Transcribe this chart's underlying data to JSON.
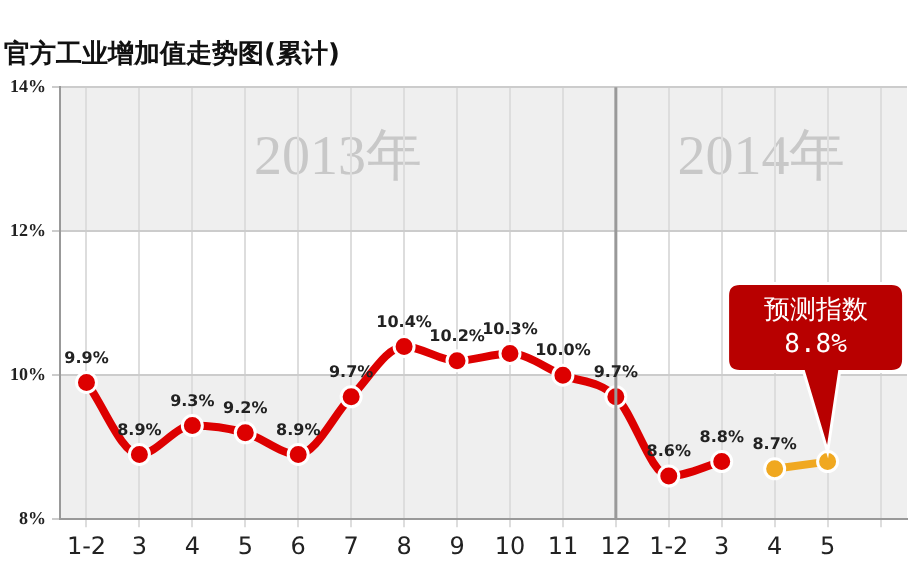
{
  "chart_data": {
    "type": "line",
    "title": "官方工业增加值走势图(累计)",
    "categories": [
      "1-2",
      "3",
      "4",
      "5",
      "6",
      "7",
      "8",
      "9",
      "10",
      "11",
      "12",
      "1-2",
      "3",
      "4",
      "5",
      null
    ],
    "series": [
      {
        "color": "#dd0000",
        "values": [
          9.9,
          8.9,
          9.3,
          9.2,
          8.9,
          9.7,
          10.4,
          10.2,
          10.3,
          10.0,
          9.7,
          8.6,
          8.8,
          null,
          null,
          null
        ],
        "value_labels": [
          "9.9%",
          "8.9%",
          "9.3%",
          "9.2%",
          "8.9%",
          "9.7%",
          "10.4%",
          "10.2%",
          "10.3%",
          "10.0%",
          "9.7%",
          "8.6%",
          "8.8%",
          null,
          null,
          null
        ]
      },
      {
        "color": "#f0a820",
        "values": [
          null,
          null,
          null,
          null,
          null,
          null,
          null,
          null,
          null,
          null,
          null,
          null,
          null,
          8.7,
          8.8,
          null
        ],
        "value_labels": [
          null,
          null,
          null,
          null,
          null,
          null,
          null,
          null,
          null,
          null,
          null,
          null,
          null,
          "8.7%",
          null,
          null
        ]
      }
    ],
    "ylim": [
      8,
      14
    ],
    "yticks": [
      {
        "value": 8,
        "label": "8%"
      },
      {
        "value": 10,
        "label": "10%"
      },
      {
        "value": 12,
        "label": "12%"
      },
      {
        "value": 14,
        "label": "14%"
      }
    ],
    "grid": true,
    "marker": "circle",
    "line_style": "solid",
    "legend": false,
    "ref_lines": [
      {
        "axis": "x",
        "value": "12",
        "color": "#999999"
      }
    ],
    "bands": [
      {
        "axis": "y",
        "from": 8,
        "to": 10,
        "color": "#efefef"
      },
      {
        "axis": "y",
        "from": 12,
        "to": 14,
        "color": "#efefef"
      }
    ],
    "annotations": [
      "2013年",
      "2014年",
      "预测指数",
      "8.8%"
    ]
  }
}
